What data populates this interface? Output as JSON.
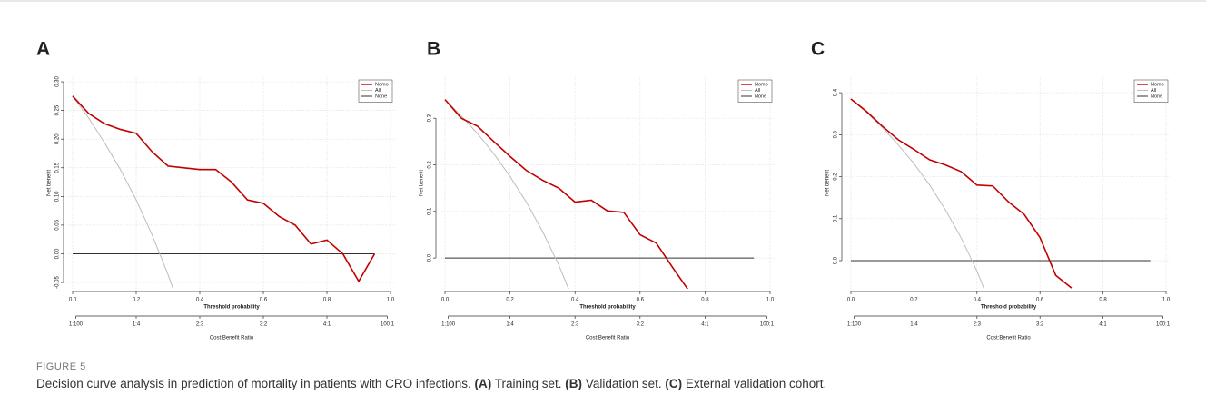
{
  "chart_data": [
    {
      "type": "line",
      "title": "A",
      "xlabel": "Threshold probability",
      "ylabel": "Net benefit",
      "x2label": "Cost:Benefit Ratio",
      "x": [
        0,
        0.05,
        0.1,
        0.15,
        0.2,
        0.25,
        0.3,
        0.35,
        0.4,
        0.45,
        0.5,
        0.55,
        0.6,
        0.65,
        0.7,
        0.75,
        0.8,
        0.85,
        0.9,
        0.95
      ],
      "series": [
        {
          "name": "Nomo",
          "color": "#c00000",
          "values": [
            0.275,
            0.245,
            0.227,
            0.217,
            0.21,
            0.178,
            0.153,
            0.15,
            0.147,
            0.147,
            0.125,
            0.094,
            0.088,
            0.065,
            0.05,
            0.017,
            0.024,
            0,
            -0.048,
            0
          ]
        },
        {
          "name": "All",
          "color": "#bdbdbd",
          "values": [
            0.275,
            0.237,
            0.194,
            0.147,
            0.094,
            0.033,
            -0.036,
            -0.115,
            null,
            null,
            null,
            null,
            null,
            null,
            null,
            null,
            null,
            null,
            null,
            null
          ]
        },
        {
          "name": "None",
          "color": "#333333",
          "values": [
            0,
            0,
            0,
            0,
            0,
            0,
            0,
            0,
            0,
            0,
            0,
            0,
            0,
            0,
            0,
            0,
            0,
            0,
            0,
            0
          ]
        }
      ],
      "xlim": [
        0,
        1
      ],
      "ylim": [
        -0.061,
        0.308
      ],
      "xticks": [
        {
          "value": 0,
          "label": "0.0"
        },
        {
          "value": 0.2,
          "label": "0.2"
        },
        {
          "value": 0.4,
          "label": "0.4"
        },
        {
          "value": 0.6,
          "label": "0.6"
        },
        {
          "value": 0.8,
          "label": "0.8"
        },
        {
          "value": 1,
          "label": "1.0"
        }
      ],
      "yticks": [
        {
          "value": -0.05,
          "label": "-0.05"
        },
        {
          "value": 0,
          "label": "0.00"
        },
        {
          "value": 0.05,
          "label": "0.05"
        },
        {
          "value": 0.1,
          "label": "0.10"
        },
        {
          "value": 0.15,
          "label": "0.15"
        },
        {
          "value": 0.2,
          "label": "0.20"
        },
        {
          "value": 0.25,
          "label": "0.25"
        },
        {
          "value": 0.3,
          "label": "0.30"
        }
      ],
      "x2ticks": [
        {
          "value": 0.01,
          "label": "1:100"
        },
        {
          "value": 0.2,
          "label": "1:4"
        },
        {
          "value": 0.4,
          "label": "2:3"
        },
        {
          "value": 0.6,
          "label": "3:2"
        },
        {
          "value": 0.8,
          "label": "4:1"
        },
        {
          "value": 0.99,
          "label": "100:1"
        }
      ],
      "grid": true,
      "legend": "top-right"
    },
    {
      "type": "line",
      "title": "B",
      "xlabel": "Threshold probability",
      "ylabel": "Net benefit",
      "x2label": "Cost:Benefit Ratio",
      "x": [
        0,
        0.05,
        0.1,
        0.15,
        0.2,
        0.25,
        0.3,
        0.35,
        0.4,
        0.45,
        0.5,
        0.55,
        0.6,
        0.65,
        0.7,
        0.75,
        0.8,
        0.85,
        0.9,
        0.95
      ],
      "series": [
        {
          "name": "Nomo",
          "color": "#c00000",
          "values": [
            0.34,
            0.3,
            0.283,
            0.25,
            0.218,
            0.188,
            0.167,
            0.15,
            0.12,
            0.124,
            0.101,
            0.098,
            0.05,
            0.032,
            -0.02,
            -0.07,
            null,
            null,
            null,
            null
          ]
        },
        {
          "name": "All",
          "color": "#bdbdbd",
          "values": [
            0.34,
            0.305,
            0.267,
            0.224,
            0.175,
            0.12,
            0.057,
            -0.015,
            -0.1,
            null,
            null,
            null,
            null,
            null,
            null,
            null,
            null,
            null,
            null,
            null
          ]
        },
        {
          "name": "None",
          "color": "#333333",
          "values": [
            0,
            0,
            0,
            0,
            0,
            0,
            0,
            0,
            0,
            0,
            0,
            0,
            0,
            0,
            0,
            0,
            0,
            0,
            0,
            0
          ]
        }
      ],
      "xlim": [
        0,
        1
      ],
      "ylim": [
        -0.066,
        0.388
      ],
      "xticks": [
        {
          "value": 0,
          "label": "0.0"
        },
        {
          "value": 0.2,
          "label": "0.2"
        },
        {
          "value": 0.4,
          "label": "0.4"
        },
        {
          "value": 0.6,
          "label": "0.6"
        },
        {
          "value": 0.8,
          "label": "0.8"
        },
        {
          "value": 1,
          "label": "1.0"
        }
      ],
      "yticks": [
        {
          "value": 0,
          "label": "0.0"
        },
        0.1,
        0.2,
        0.3
      ],
      "x2ticks": [
        {
          "value": 0.01,
          "label": "1:100"
        },
        {
          "value": 0.2,
          "label": "1:4"
        },
        {
          "value": 0.4,
          "label": "2:3"
        },
        {
          "value": 0.6,
          "label": "3:2"
        },
        {
          "value": 0.8,
          "label": "4:1"
        },
        {
          "value": 0.99,
          "label": "100:1"
        }
      ],
      "grid": true,
      "legend": "top-right"
    },
    {
      "type": "line",
      "title": "C",
      "xlabel": "Threshold probability",
      "ylabel": "Net benefit",
      "x2label": "Cost:Benefit Ratio",
      "x": [
        0,
        0.05,
        0.1,
        0.15,
        0.2,
        0.25,
        0.3,
        0.35,
        0.4,
        0.45,
        0.5,
        0.55,
        0.6,
        0.65,
        0.7,
        0.75,
        0.8,
        0.85,
        0.9,
        0.95
      ],
      "series": [
        {
          "name": "Nomo",
          "color": "#c00000",
          "values": [
            0.385,
            0.355,
            0.32,
            0.288,
            0.265,
            0.24,
            0.228,
            0.212,
            0.18,
            0.178,
            0.14,
            0.11,
            0.055,
            -0.035,
            -0.065,
            null,
            null,
            null,
            null,
            null
          ]
        },
        {
          "name": "All",
          "color": "#bdbdbd",
          "values": [
            0.385,
            0.353,
            0.317,
            0.276,
            0.231,
            0.18,
            0.121,
            0.054,
            -0.025,
            -0.118,
            null,
            null,
            null,
            null,
            null,
            null,
            null,
            null,
            null,
            null
          ]
        },
        {
          "name": "None",
          "color": "#333333",
          "values": [
            0,
            0,
            0,
            0,
            0,
            0,
            0,
            0,
            0,
            0,
            0,
            0,
            0,
            0,
            0,
            0,
            0,
            0,
            0,
            0
          ]
        }
      ],
      "xlim": [
        0,
        1
      ],
      "ylim": [
        -0.067,
        0.437
      ],
      "xticks": [
        {
          "value": 0,
          "label": "0.0"
        },
        {
          "value": 0.2,
          "label": "0.2"
        },
        {
          "value": 0.4,
          "label": "0.4"
        },
        {
          "value": 0.6,
          "label": "0.6"
        },
        {
          "value": 0.8,
          "label": "0.8"
        },
        {
          "value": 1,
          "label": "1.0"
        }
      ],
      "yticks": [
        {
          "value": 0,
          "label": "0.0"
        },
        0.1,
        0.2,
        0.3,
        0.4
      ],
      "x2ticks": [
        {
          "value": 0.01,
          "label": "1:100"
        },
        {
          "value": 0.2,
          "label": "1:4"
        },
        {
          "value": 0.4,
          "label": "2:3"
        },
        {
          "value": 0.6,
          "label": "3:2"
        },
        {
          "value": 0.8,
          "label": "4:1"
        },
        {
          "value": 0.99,
          "label": "100:1"
        }
      ],
      "grid": true,
      "legend": "top-right"
    }
  ],
  "figure_label": "FIGURE 5",
  "caption": [
    "Decision curve analysis in prediction of mortality in patients with CRO infections.",
    "(A)",
    "Training set.",
    "(B)",
    "Validation set.",
    "(C)",
    "External validation cohort."
  ]
}
